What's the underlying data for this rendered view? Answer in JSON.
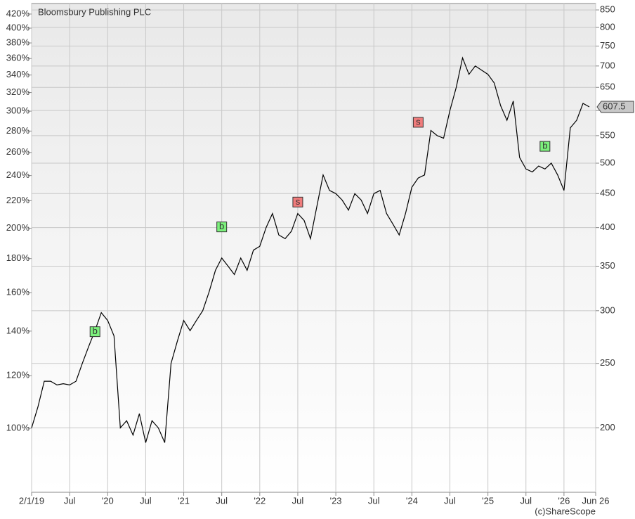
{
  "chart_data": {
    "type": "line",
    "footer": "(c)ShareScope",
    "log_scale": true,
    "grid": true,
    "x": [
      "2019-01",
      "2019-02",
      "2019-03",
      "2019-04",
      "2019-05",
      "2019-06",
      "2019-07",
      "2019-08",
      "2019-09",
      "2019-10",
      "2019-11",
      "2019-12",
      "2020-01",
      "2020-02",
      "2020-03",
      "2020-04",
      "2020-05",
      "2020-06",
      "2020-07",
      "2020-08",
      "2020-09",
      "2020-10",
      "2020-11",
      "2020-12",
      "2021-01",
      "2021-02",
      "2021-03",
      "2021-04",
      "2021-05",
      "2021-06",
      "2021-07",
      "2021-08",
      "2021-09",
      "2021-10",
      "2021-11",
      "2021-12",
      "2022-01",
      "2022-02",
      "2022-03",
      "2022-04",
      "2022-05",
      "2022-06",
      "2022-07",
      "2022-08",
      "2022-09",
      "2022-10",
      "2022-11",
      "2022-12",
      "2023-01",
      "2023-02",
      "2023-03",
      "2023-04",
      "2023-05",
      "2023-06",
      "2023-07",
      "2023-08",
      "2023-09",
      "2023-10",
      "2023-11",
      "2023-12",
      "2024-01",
      "2024-02",
      "2024-03",
      "2024-04",
      "2024-05",
      "2024-06",
      "2024-07",
      "2024-08",
      "2024-09",
      "2024-10",
      "2024-11",
      "2024-12",
      "2025-01",
      "2025-02",
      "2025-03",
      "2025-04",
      "2025-05",
      "2025-06",
      "2025-07",
      "2025-08",
      "2025-09",
      "2025-10",
      "2025-11",
      "2025-12",
      "2026-01",
      "2026-02",
      "2026-03",
      "2026-04",
      "2026-05"
    ],
    "series": [
      {
        "name": "Bloomsbury Publishing PLC",
        "color": "#000000",
        "values": [
          200,
          215,
          235,
          235,
          232,
          233,
          232,
          235,
          250,
          265,
          280,
          298,
          290,
          275,
          200,
          205,
          195,
          210,
          190,
          205,
          200,
          190,
          250,
          270,
          290,
          280,
          290,
          300,
          320,
          345,
          360,
          350,
          340,
          360,
          345,
          370,
          375,
          400,
          420,
          390,
          385,
          395,
          420,
          410,
          385,
          430,
          480,
          455,
          450,
          440,
          425,
          450,
          440,
          420,
          450,
          455,
          420,
          405,
          390,
          420,
          460,
          475,
          480,
          560,
          550,
          545,
          600,
          650,
          720,
          680,
          700,
          690,
          680,
          660,
          610,
          580,
          620,
          510,
          490,
          485,
          495,
          490,
          500,
          480,
          455,
          565,
          580,
          615,
          607.5
        ]
      }
    ],
    "signals": [
      {
        "x": "2019-11",
        "value": 279,
        "label": "b",
        "color": "#7cf07c"
      },
      {
        "x": "2021-07",
        "value": 401,
        "label": "b",
        "color": "#7cf07c"
      },
      {
        "x": "2022-07",
        "value": 437,
        "label": "s",
        "color": "#f07c7c"
      },
      {
        "x": "2024-02",
        "value": 576,
        "label": "s",
        "color": "#f07c7c"
      },
      {
        "x": "2025-10",
        "value": 530,
        "label": "b",
        "color": "#7cf07c"
      }
    ],
    "xlim": [
      "2019-01",
      "2026-06"
    ],
    "xticks": [
      {
        "value": "2019-01",
        "label": "2/1/19"
      },
      {
        "value": "2019-07",
        "label": "Jul"
      },
      {
        "value": "2020-01",
        "label": "'20"
      },
      {
        "value": "2020-07",
        "label": "Jul"
      },
      {
        "value": "2021-01",
        "label": "'21"
      },
      {
        "value": "2021-07",
        "label": "Jul"
      },
      {
        "value": "2022-01",
        "label": "'22"
      },
      {
        "value": "2022-07",
        "label": "Jul"
      },
      {
        "value": "2023-01",
        "label": "'23"
      },
      {
        "value": "2023-07",
        "label": "Jul"
      },
      {
        "value": "2024-01",
        "label": "'24"
      },
      {
        "value": "2024-07",
        "label": "Jul"
      },
      {
        "value": "2025-01",
        "label": "'25"
      },
      {
        "value": "2025-07",
        "label": "Jul"
      },
      {
        "value": "2026-01",
        "label": "'26"
      },
      {
        "value": "2026-06",
        "label": "Jun 26"
      }
    ],
    "ylim": [
      160,
      869
    ],
    "yticks": [
      200,
      250,
      300,
      350,
      400,
      450,
      500,
      550,
      600,
      650,
      700,
      750,
      800,
      850
    ],
    "y2lim": [
      80.1,
      435.6
    ],
    "y2ticks": [
      {
        "value": 100,
        "label": "100%"
      },
      {
        "value": 120,
        "label": "120%"
      },
      {
        "value": 140,
        "label": "140%"
      },
      {
        "value": 160,
        "label": "160%"
      },
      {
        "value": 180,
        "label": "180%"
      },
      {
        "value": 200,
        "label": "200%"
      },
      {
        "value": 220,
        "label": "220%"
      },
      {
        "value": 240,
        "label": "240%"
      },
      {
        "value": 260,
        "label": "260%"
      },
      {
        "value": 280,
        "label": "280%"
      },
      {
        "value": 300,
        "label": "300%"
      },
      {
        "value": 320,
        "label": "320%"
      },
      {
        "value": 340,
        "label": "340%"
      },
      {
        "value": 360,
        "label": "360%"
      },
      {
        "value": 380,
        "label": "380%"
      },
      {
        "value": 400,
        "label": "400%"
      },
      {
        "value": 420,
        "label": "420%"
      }
    ]
  }
}
